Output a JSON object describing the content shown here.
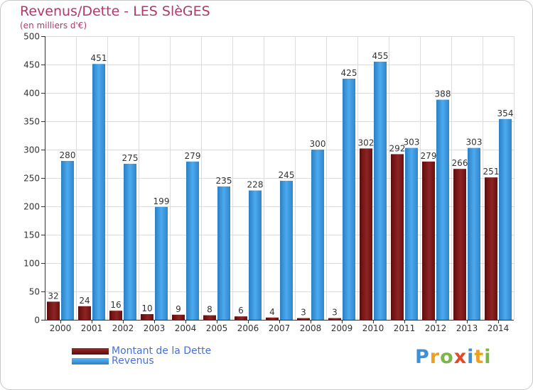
{
  "colors": {
    "dette": "#7a1515",
    "revenus": "#3d9be0",
    "title": "#b0386a",
    "legend_text": "#4a6fd8"
  },
  "chart_data": {
    "type": "bar",
    "title": "Revenus/Dette - LES SlèGES",
    "subtitle": "(en milliers d'€)",
    "categories": [
      "2000",
      "2001",
      "2002",
      "2003",
      "2004",
      "2005",
      "2006",
      "2007",
      "2008",
      "2009",
      "2010",
      "2011",
      "2012",
      "2013",
      "2014"
    ],
    "series": [
      {
        "name": "Montant de la Dette",
        "values": [
          32,
          24,
          16,
          10,
          9,
          8,
          6,
          4,
          3,
          3,
          302,
          292,
          279,
          266,
          251
        ]
      },
      {
        "name": "Revenus",
        "values": [
          280,
          451,
          275,
          199,
          279,
          235,
          228,
          245,
          300,
          425,
          455,
          303,
          388,
          303,
          354
        ]
      }
    ],
    "ylim": [
      0,
      500
    ],
    "yticks": [
      0,
      50,
      100,
      150,
      200,
      250,
      300,
      350,
      400,
      450,
      500
    ],
    "grid": true,
    "legend": "bottom-left"
  },
  "logo": {
    "letters": [
      "P",
      "r",
      "o",
      "x",
      "i",
      "t",
      "i"
    ]
  }
}
